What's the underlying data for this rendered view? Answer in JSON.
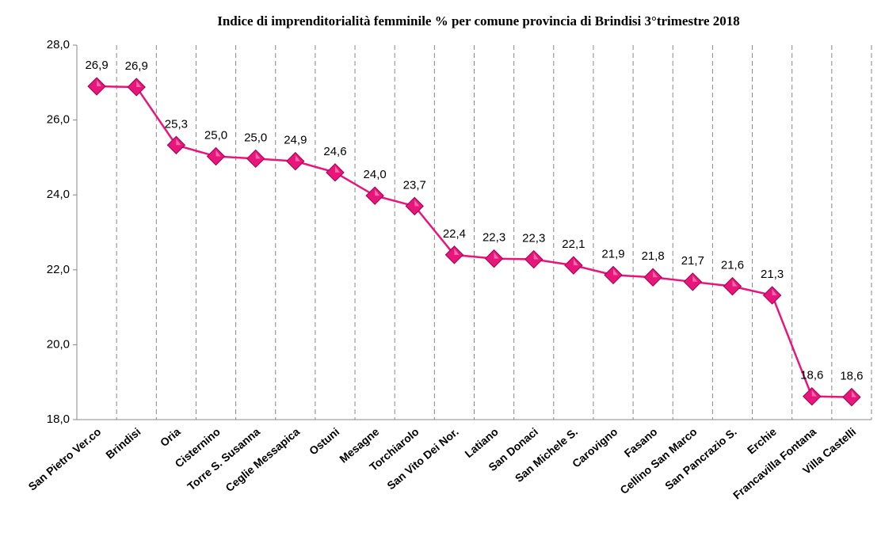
{
  "chart_data": {
    "type": "line",
    "title": "Indice di imprenditorialità femminile % per comune  provincia di Brindisi 3°trimestre 2018",
    "categories": [
      "San Pietro Ver.co",
      "Brindisi",
      "Oria",
      "Cisternino",
      "Torre S. Susanna",
      "Ceglie Messapica",
      "Ostuni",
      "Mesagne",
      "Torchiarolo",
      "San Vito Dei Nor.",
      "Latiano",
      "San Donaci",
      "San Michele S.",
      "Carovigno",
      "Fasano",
      "Cellino San Marco",
      "San Pancrazio S.",
      "Erchie",
      "Francavilla Fontana",
      "Villa Castelli"
    ],
    "values": [
      26.9,
      26.88,
      25.33,
      25.03,
      24.97,
      24.9,
      24.6,
      23.98,
      23.7,
      22.4,
      22.3,
      22.28,
      22.12,
      21.86,
      21.8,
      21.68,
      21.56,
      21.32,
      18.62,
      18.6
    ],
    "value_labels": [
      "26,9",
      "26,9",
      "25,3",
      "25,0",
      "25,0",
      "24,9",
      "24,6",
      "24,0",
      "23,7",
      "22,4",
      "22,3",
      "22,3",
      "22,1",
      "21,9",
      "21,8",
      "21,7",
      "21,6",
      "21,3",
      "18,6",
      "18,6"
    ],
    "color": "#e8157a",
    "ylim": [
      18,
      28
    ],
    "yticks": [
      {
        "value": 18,
        "label": "18,0"
      },
      {
        "value": 20,
        "label": "20,0"
      },
      {
        "value": 22,
        "label": "22,0"
      },
      {
        "value": 24,
        "label": "24,0"
      },
      {
        "value": 26,
        "label": "26,0"
      },
      {
        "value": 28,
        "label": "28,0"
      }
    ],
    "category_grid": true
  }
}
